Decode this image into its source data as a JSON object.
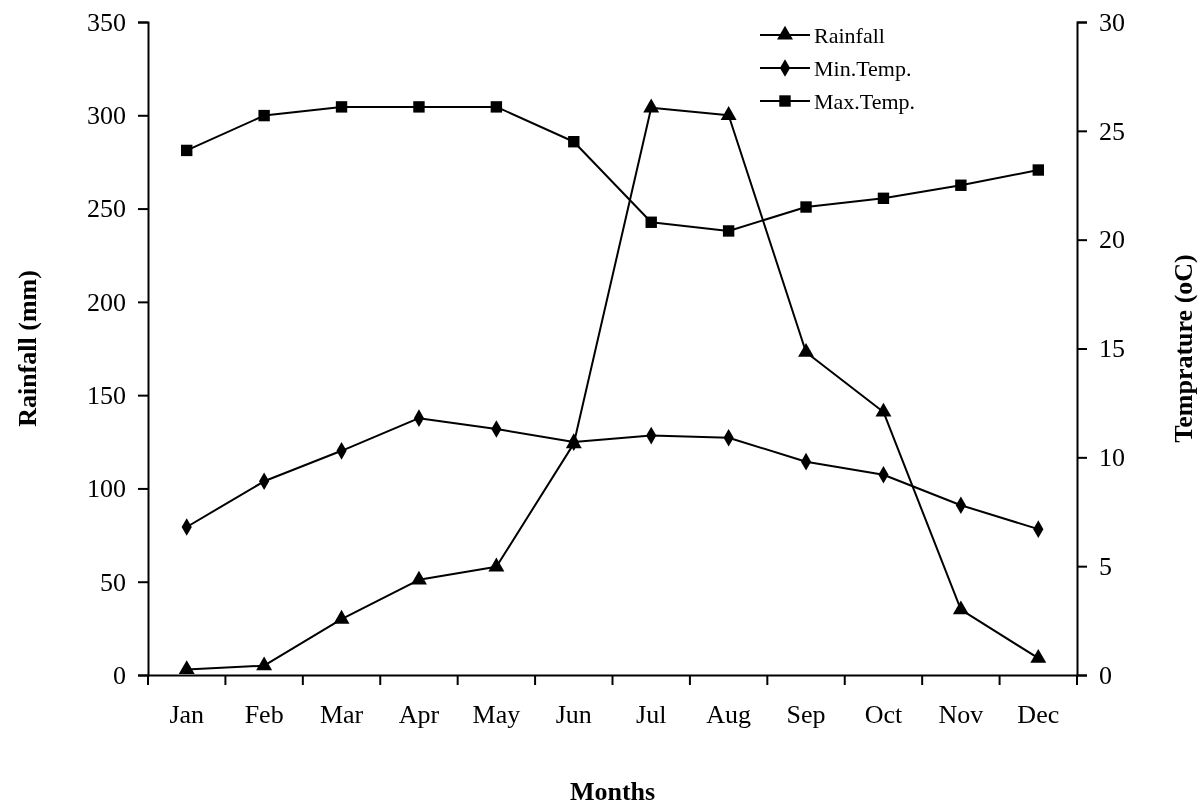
{
  "chart_data": {
    "type": "line",
    "xlabel": "Months",
    "ylabel": "Rainfall (mm)",
    "y2label": "Temprature (oC)",
    "categories": [
      "Jan",
      "Feb",
      "Mar",
      "Apr",
      "May",
      "Jun",
      "Jul",
      "Aug",
      "Sep",
      "Oct",
      "Nov",
      "Dec"
    ],
    "ylim": [
      0,
      350
    ],
    "yticks": [
      0,
      50,
      100,
      150,
      200,
      250,
      300,
      350
    ],
    "y2lim": [
      0,
      30
    ],
    "y2ticks": [
      0,
      5,
      10,
      15,
      20,
      25,
      30
    ],
    "legend": "top right",
    "grid": false,
    "series": [
      {
        "name": "Rainfall",
        "color": "#000000",
        "marker": "triangle",
        "values": [
          3,
          5,
          30,
          51,
          58,
          124,
          304,
          300,
          173,
          141,
          35,
          9
        ]
      },
      {
        "name": "Min.Temp.",
        "color": "#000000",
        "marker": "diamond",
        "axis": "y2",
        "values": [
          6.8,
          8.9,
          10.3,
          11.8,
          11.3,
          10.7,
          11.0,
          10.9,
          9.8,
          9.2,
          7.8,
          6.7
        ]
      },
      {
        "name": "Max.Temp.",
        "color": "#000000",
        "marker": "square",
        "axis": "y2",
        "values": [
          24.1,
          25.7,
          26.1,
          26.1,
          26.1,
          24.5,
          20.8,
          20.4,
          21.5,
          21.9,
          22.5,
          23.2
        ]
      }
    ]
  }
}
